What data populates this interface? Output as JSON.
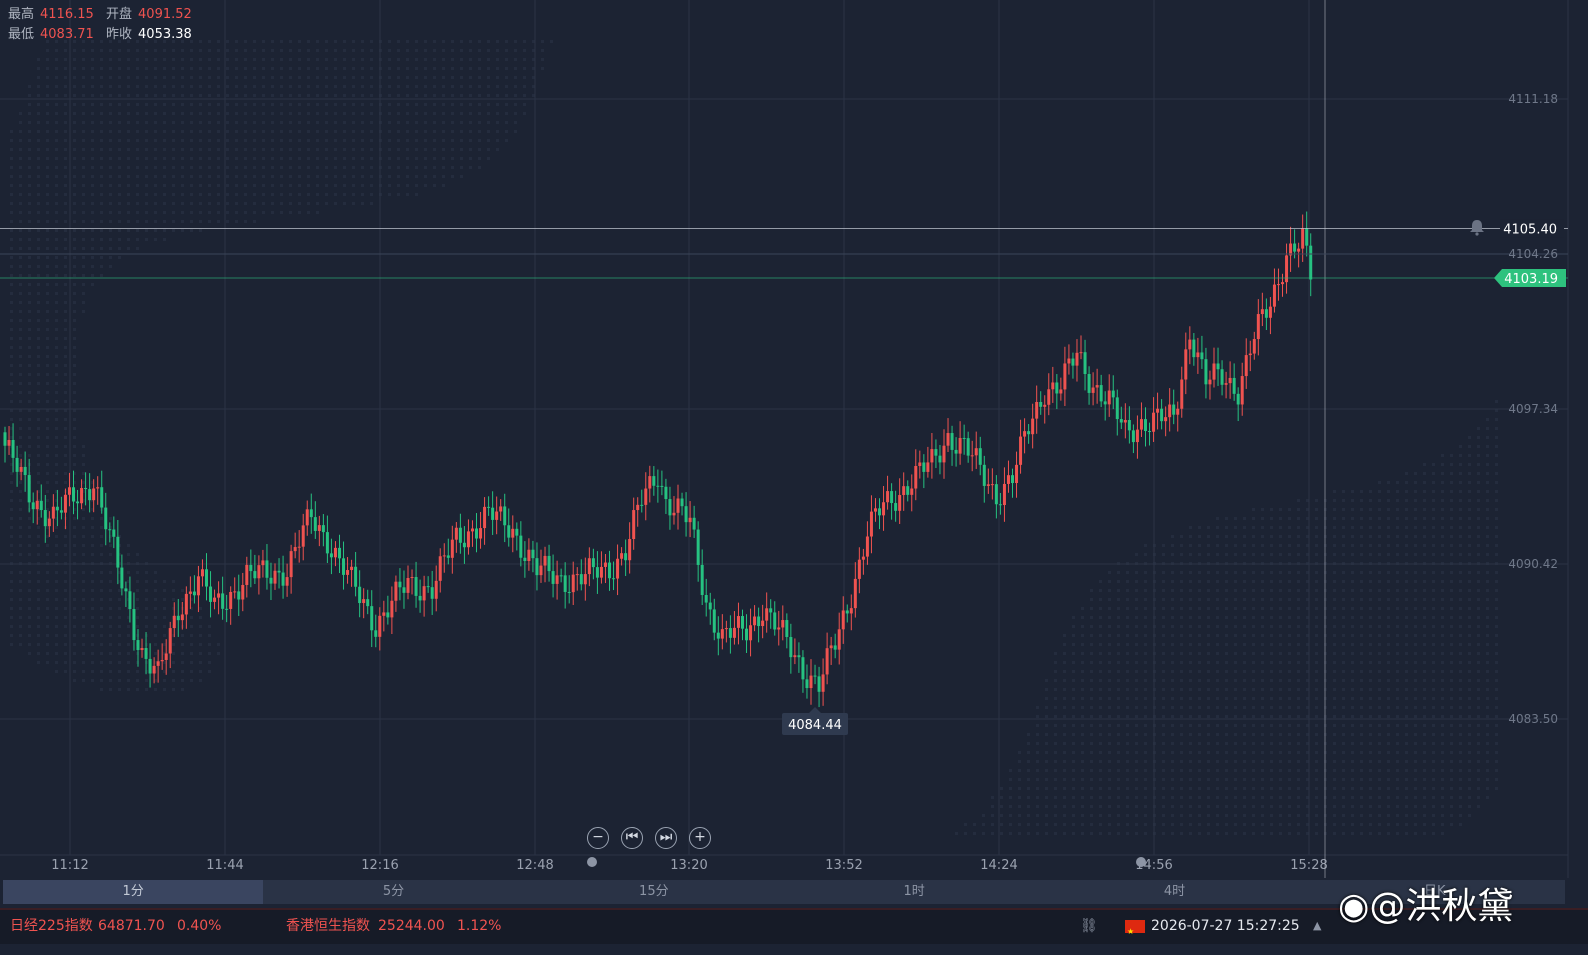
{
  "info": {
    "high_label": "最高",
    "high": "4116.15",
    "open_label": "开盘",
    "open": "4091.52",
    "low_label": "最低",
    "low": "4083.71",
    "prev_label": "昨收",
    "prev_close": "4053.38"
  },
  "chart_data": {
    "type": "candlestick",
    "y_ticks": [
      "4111.18",
      "4097.34",
      "4090.42",
      "4083.50"
    ],
    "x_ticks": [
      "11:12",
      "11:44",
      "12:16",
      "12:48",
      "13:20",
      "13:52",
      "14:24",
      "14:56",
      "15:28"
    ],
    "price_lines": {
      "crosshair": "4105.40",
      "reference": "4104.26",
      "last": "4103.19"
    },
    "min_marker": "4084.44",
    "colors": {
      "up": "#ef5350",
      "down": "#26c281",
      "last_price": "#2ec27e",
      "grid": "#2b3346"
    }
  },
  "timeframes": [
    "1分",
    "5分",
    "15分",
    "1时",
    "4时",
    "日K"
  ],
  "status": {
    "index1_name": "日经225指数",
    "index1_value": "64871.70",
    "index1_change": "0.40%",
    "index2_name": "香港恒生指数",
    "index2_value": "25244.00",
    "index2_change": "1.12%",
    "datetime": "2026-07-27 15:27:25"
  },
  "watermark": "@洪秋黛"
}
